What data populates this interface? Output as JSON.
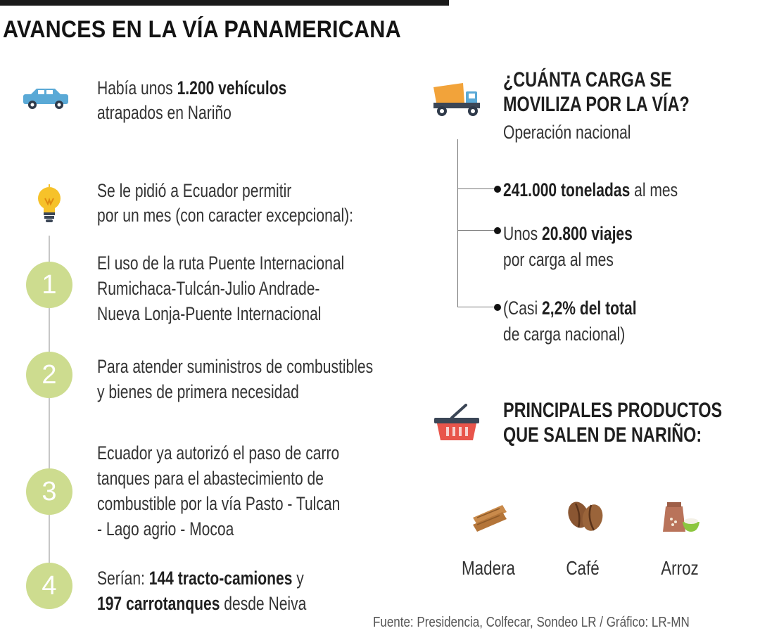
{
  "title": "AVANCES EN LA VÍA PANAMERICANA",
  "left": {
    "vehicles": {
      "pre": "Había unos ",
      "bold": "1.200 vehículos",
      "line2": "atrapados en Nariño"
    },
    "request": {
      "line1": "Se le pidió a Ecuador permitir",
      "line2": "por un mes (con caracter excepcional):"
    },
    "steps": [
      {
        "number": "1",
        "lines": [
          "El uso de la ruta Puente Internacional",
          "Rumichaca-Tulcán-Julio Andrade-",
          "Nueva Lonja-Puente Internacional"
        ]
      },
      {
        "number": "2",
        "lines": [
          "Para atender suministros de combustibles",
          "y bienes de primera necesidad"
        ]
      },
      {
        "number": "3",
        "lines": [
          "Ecuador ya autorizó el paso de carro",
          "tanques para el abastecimiento de",
          "combustible por la vía Pasto - Tulcan",
          "- Lago agrio - Mocoa"
        ]
      },
      {
        "number": "4",
        "pre": "Serían: ",
        "bold1": "144 tracto-camiones",
        "mid": " y",
        "bold2": "197 carrotanques",
        "post": " desde Neiva"
      }
    ]
  },
  "cargo": {
    "heading_line1": "¿CUÁNTA CARGA SE",
    "heading_line2": "MOVILIZA POR LA VÍA?",
    "subtitle": "Operación nacional",
    "items": [
      {
        "bold": "241.000 toneladas",
        "post": " al mes"
      },
      {
        "pre": "Unos ",
        "bold": "20.800 viajes",
        "line2": "por carga al mes"
      },
      {
        "pre": "(Casi ",
        "bold": "2,2% del total",
        "line2": "de carga nacional)"
      }
    ]
  },
  "products": {
    "heading_line1": "PRINCIPALES PRODUCTOS",
    "heading_line2": "QUE SALEN DE NARIÑO:",
    "items": [
      {
        "label": "Madera",
        "icon": "wood-planks-icon"
      },
      {
        "label": "Café",
        "icon": "coffee-beans-icon"
      },
      {
        "label": "Arroz",
        "icon": "rice-sack-icon"
      }
    ]
  },
  "source": "Fuente: Presidencia, Colfecar, Sondeo LR  / Gráfico: LR-MN",
  "colors": {
    "circle": "#cddc8f",
    "truck_dump": "#f2a33a",
    "truck_cab": "#5aa9d6",
    "bulb": "#f6c22a",
    "basket": "#e8554b"
  }
}
